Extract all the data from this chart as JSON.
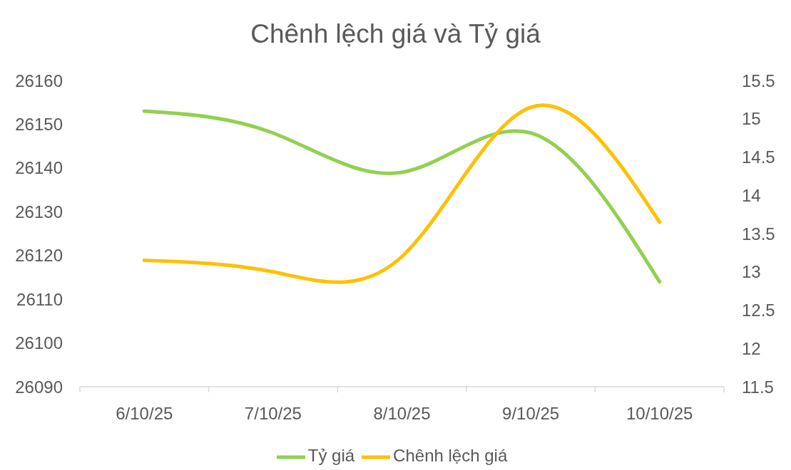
{
  "chart_data": {
    "type": "line",
    "title": "Chênh lệch giá và Tỷ giá",
    "categories": [
      "6/10/25",
      "7/10/25",
      "8/10/25",
      "9/10/25",
      "10/10/25"
    ],
    "series": [
      {
        "name": "Tỷ giá",
        "color": "#92d050",
        "values": [
          26153,
          26148,
          26139,
          26148,
          26114
        ]
      },
      {
        "name": "Chênh lệch giá",
        "color": "#ffc000",
        "axis": "y2",
        "values": [
          13.15,
          13.0,
          13.2,
          15.15,
          13.65
        ]
      }
    ],
    "ylim": [
      26090,
      26160
    ],
    "yticks": [
      26090,
      26100,
      26110,
      26120,
      26130,
      26140,
      26150,
      26160
    ],
    "y2lim": [
      11.5,
      15.5
    ],
    "y2ticks": [
      11.5,
      12,
      12.5,
      13,
      13.5,
      14,
      14.5,
      15,
      15.5
    ],
    "grid": false,
    "legend": "bottom",
    "marker": "none",
    "line_style": "solid"
  }
}
